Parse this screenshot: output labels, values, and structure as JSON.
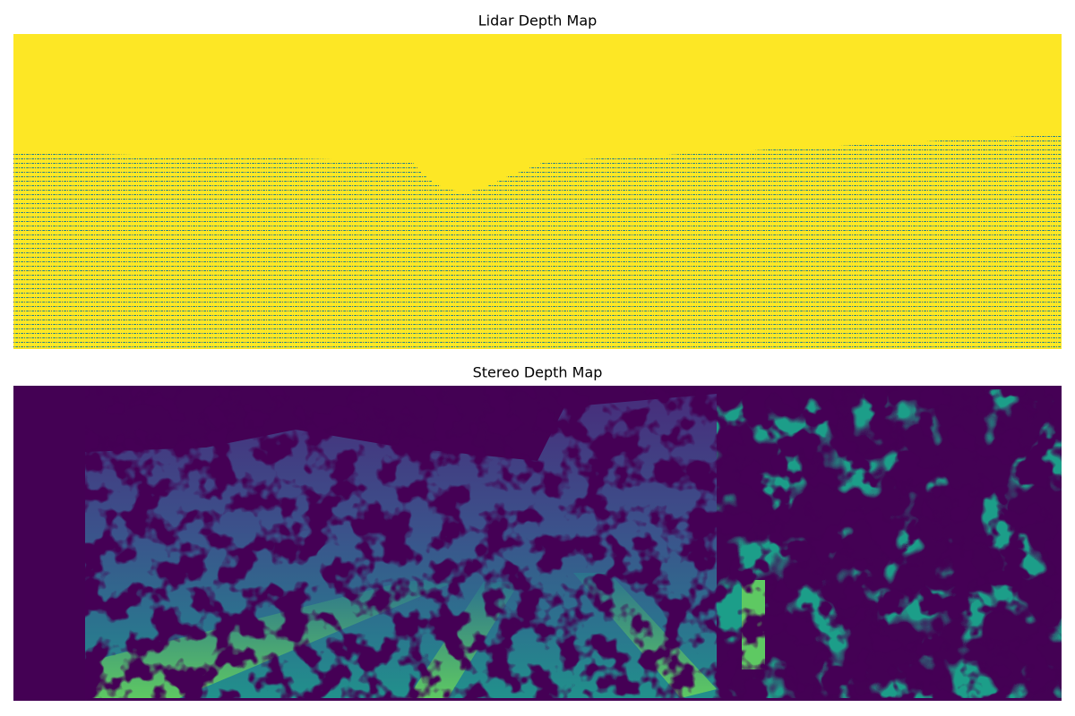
{
  "panels": [
    {
      "title": "Lidar Depth Map"
    },
    {
      "title": "Stereo Depth Map"
    }
  ]
}
